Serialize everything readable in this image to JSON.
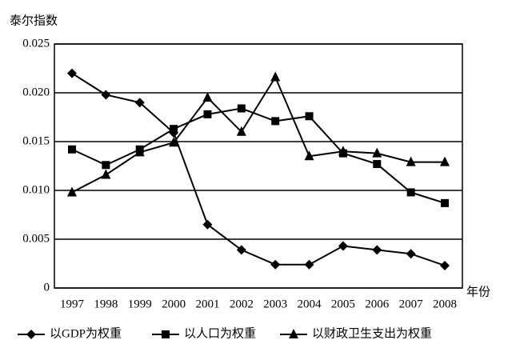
{
  "chart_data": {
    "type": "line",
    "y_label": "泰尔指数",
    "x_label": "年份",
    "categories": [
      "1997",
      "1998",
      "1999",
      "2000",
      "2001",
      "2002",
      "2003",
      "2004",
      "2005",
      "2006",
      "2007",
      "2008"
    ],
    "series": [
      {
        "name": "以GDP为权重",
        "color": "#000000",
        "marker": "diamond",
        "values": [
          0.022,
          0.0198,
          0.019,
          0.0159,
          0.0065,
          0.0039,
          0.0024,
          0.0024,
          0.0043,
          0.0039,
          0.0035,
          0.0023
        ]
      },
      {
        "name": "以人口为权重",
        "color": "#000000",
        "marker": "square",
        "values": [
          0.0142,
          0.0126,
          0.0142,
          0.0163,
          0.0178,
          0.0184,
          0.0171,
          0.0176,
          0.0138,
          0.0127,
          0.0098,
          0.0087
        ]
      },
      {
        "name": "以财政卫生支出为权重",
        "color": "#000000",
        "marker": "triangle",
        "values": [
          0.0098,
          0.0116,
          0.0139,
          0.0149,
          0.0195,
          0.016,
          0.0216,
          0.0135,
          0.014,
          0.0138,
          0.0129,
          0.0129
        ]
      }
    ],
    "ylim": [
      0,
      0.025
    ],
    "yticks": [
      0,
      0.005,
      {
        "value": 0.01,
        "label": "0.010"
      },
      0.015,
      {
        "value": 0.02,
        "label": "0.020"
      },
      0.025
    ],
    "grid": true,
    "legend": "bottom"
  }
}
